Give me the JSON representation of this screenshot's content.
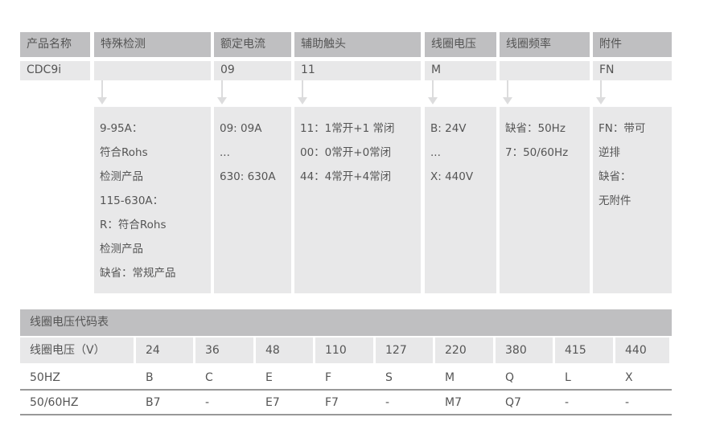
{
  "columns": [
    {
      "header": "产品名称",
      "value": "CDC9i",
      "details": []
    },
    {
      "header": "特殊检测",
      "value": "",
      "details": [
        "9-95A：",
        "符合Rohs",
        "检测产品",
        "115-630A：",
        "R：符合Rohs",
        "检测产品",
        "缺省：常规产品"
      ]
    },
    {
      "header": "额定电流",
      "value": "09",
      "details": [
        "09: 09A",
        "...",
        "630: 630A"
      ]
    },
    {
      "header": "辅助触头",
      "value": "11",
      "details": [
        "11：1常开+1 常闭",
        "00：0常开+0常闭",
        "44：4常开+4常闭"
      ]
    },
    {
      "header": "线圈电压",
      "value": "M",
      "details": [
        "B: 24V",
        "...",
        "X: 440V"
      ]
    },
    {
      "header": "线圈频率",
      "value": "",
      "details": [
        "缺省：50Hz",
        "7：50/60Hz"
      ]
    },
    {
      "header": "附件",
      "value": "FN",
      "details": [
        "FN：带可",
        "逆排",
        "缺省：",
        "无附件"
      ]
    }
  ],
  "coil_table": {
    "title": "线圈电压代码表",
    "header": [
      "线圈电压（V）",
      "24",
      "36",
      "48",
      "110",
      "127",
      "220",
      "380",
      "415",
      "440"
    ],
    "rows": [
      [
        "50HZ",
        "B",
        "C",
        "E",
        "F",
        "S",
        "M",
        "Q",
        "L",
        "X"
      ],
      [
        "50/60HZ",
        "B7",
        "-",
        "E7",
        "F7",
        "-",
        "M7",
        "Q7",
        "-",
        "-"
      ]
    ]
  }
}
